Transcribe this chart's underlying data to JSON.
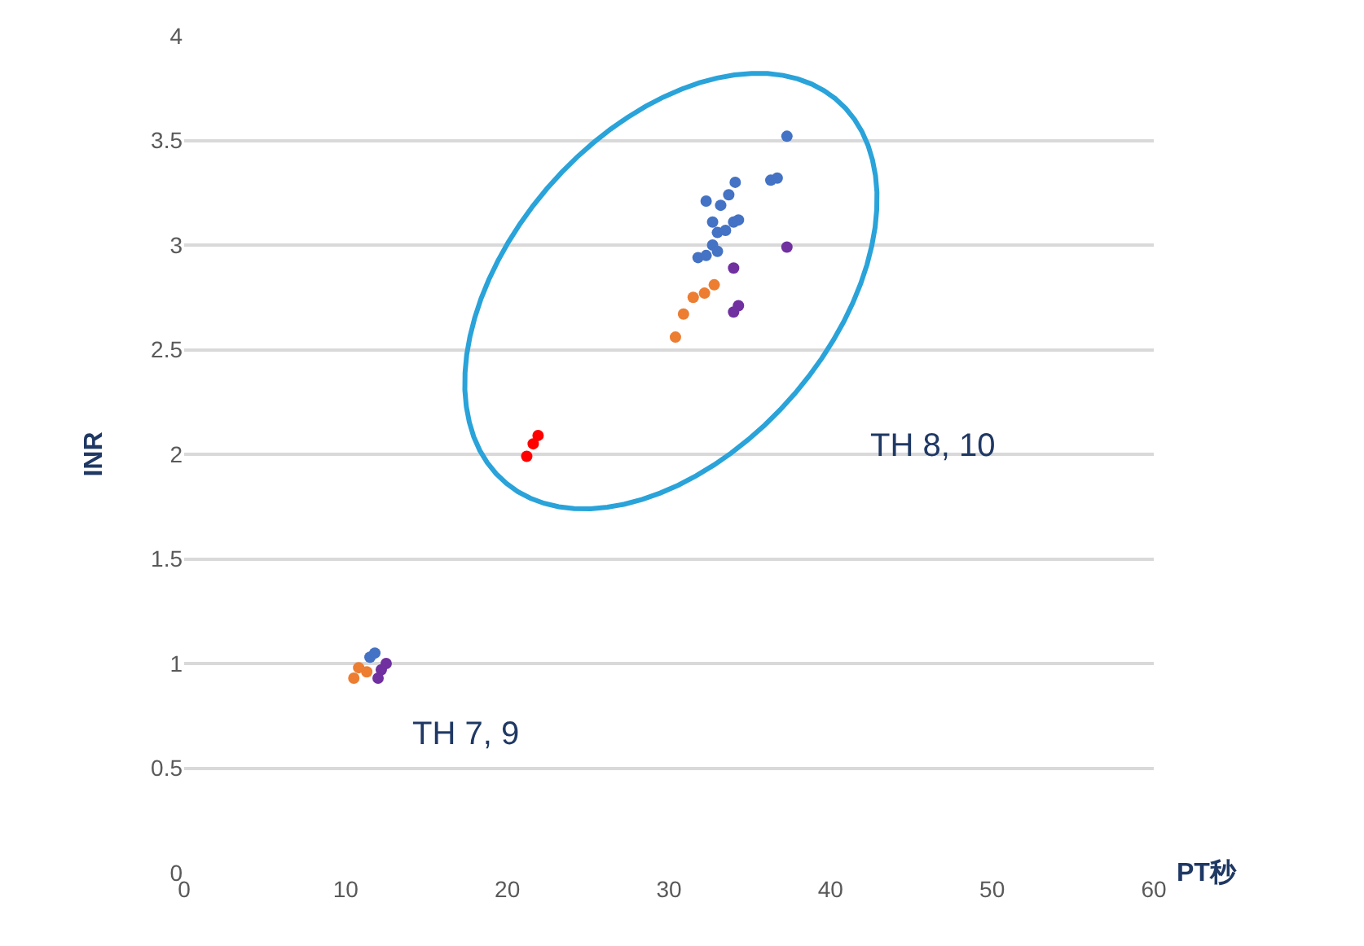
{
  "chart_data": {
    "type": "scatter",
    "xlabel": "PT秒",
    "ylabel": "INR",
    "xlim": [
      0,
      60
    ],
    "xticks": [
      0,
      10,
      20,
      30,
      40,
      50,
      60
    ],
    "ylim": [
      0,
      4
    ],
    "yticks": [
      0,
      0.5,
      1,
      1.5,
      2,
      2.5,
      3,
      3.5,
      4
    ],
    "grid": "y",
    "marker": "circle",
    "series": [
      {
        "color": "#4472c4",
        "x": [
          37.3,
          36.3,
          36.7,
          34.1,
          32.3,
          33.2,
          33.7,
          32.7,
          34.0,
          34.3,
          33.0,
          33.5,
          32.7,
          31.8,
          32.3,
          33.0,
          11.5,
          11.8
        ],
        "values": [
          3.52,
          3.31,
          3.32,
          3.3,
          3.21,
          3.19,
          3.24,
          3.11,
          3.11,
          3.12,
          3.06,
          3.07,
          3.0,
          2.94,
          2.95,
          2.97,
          1.03,
          1.05
        ]
      },
      {
        "color": "#ed7d31",
        "x": [
          30.4,
          30.9,
          31.5,
          32.2,
          32.8,
          10.5,
          10.8,
          11.3
        ],
        "values": [
          2.56,
          2.67,
          2.75,
          2.77,
          2.81,
          0.93,
          0.98,
          0.96
        ]
      },
      {
        "color": "#7030a0",
        "x": [
          37.3,
          34.0,
          34.3,
          34.0,
          12.2,
          12.5,
          12.0
        ],
        "values": [
          2.99,
          2.89,
          2.71,
          2.68,
          0.97,
          1.0,
          0.93
        ]
      },
      {
        "color": "#ff0000",
        "x": [
          21.9,
          21.6,
          21.2
        ],
        "values": [
          2.09,
          2.05,
          1.99
        ]
      }
    ],
    "annotations": [
      "TH 8, 10",
      "TH 7, 9"
    ]
  }
}
